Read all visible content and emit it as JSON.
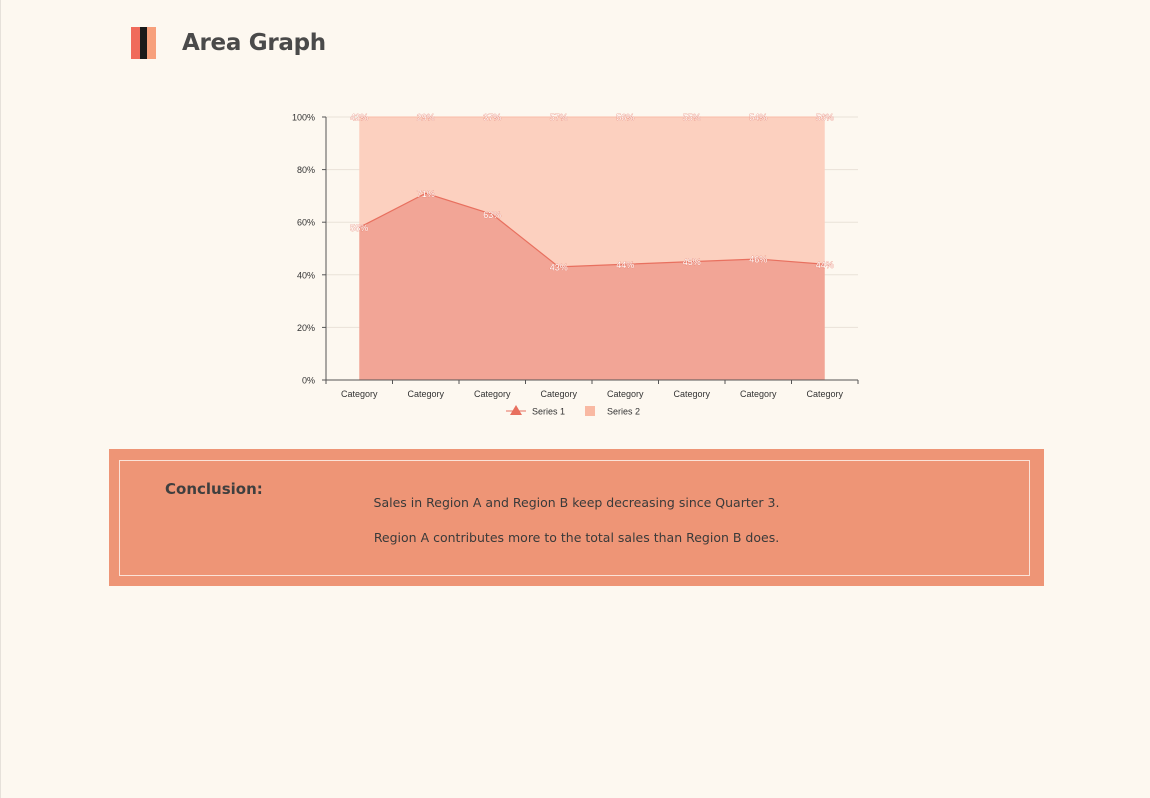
{
  "page": {
    "title": "Area Graph",
    "icon_colors": [
      "#f06b5b",
      "#1a1a1a",
      "#f7a07c"
    ]
  },
  "chart_data": {
    "type": "area",
    "stacked_percent": true,
    "categories": [
      "Category",
      "Category",
      "Category",
      "Category",
      "Category",
      "Category",
      "Category",
      "Category"
    ],
    "series": [
      {
        "name": "Series 1",
        "values": [
          58,
          71,
          63,
          43,
          44,
          45,
          46,
          44
        ],
        "labels": [
          "58%",
          "71%",
          "63%",
          "43%",
          "44%",
          "45%",
          "46%",
          "44%"
        ],
        "color": "#f2a596",
        "line_color": "#e8705f",
        "marker": "triangle"
      },
      {
        "name": "Series 2",
        "values": [
          42,
          29,
          37,
          57,
          56,
          55,
          54,
          56
        ],
        "labels": [
          "42%",
          "29%",
          "37%",
          "57%",
          "56%",
          "55%",
          "54%",
          "56%"
        ],
        "color": "#fcd0bf",
        "marker": "square"
      }
    ],
    "y_ticks": [
      "0%",
      "20%",
      "40%",
      "60%",
      "80%",
      "100%"
    ],
    "ylim": [
      0,
      100
    ],
    "legend_position": "bottom"
  },
  "conclusion": {
    "label": "Conclusion:",
    "lines": [
      "Sales in Region A and Region B keep decreasing since Quarter 3.",
      "Region A contributes more to the total sales than Region B does."
    ]
  }
}
